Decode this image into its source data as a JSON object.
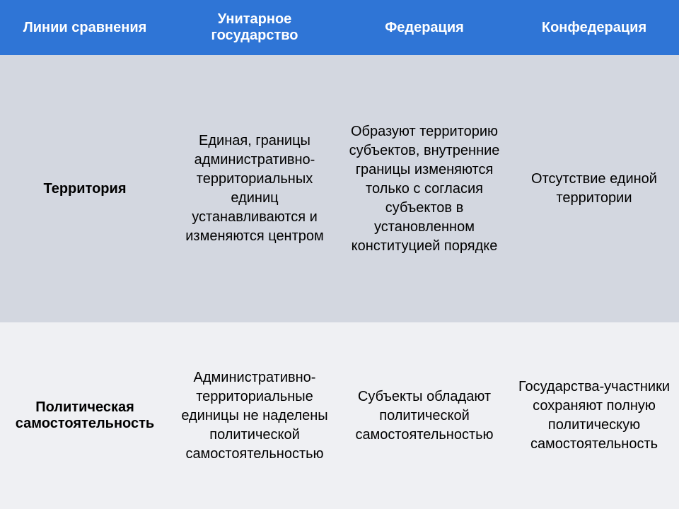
{
  "colors": {
    "header_bg": "#2f75d6",
    "header_text": "#ffffff",
    "row1_bg": "#d3d7e0",
    "row2_bg": "#eff0f3",
    "body_text": "#000000"
  },
  "columns": [
    "Линии сравнения",
    "Унитарное государство",
    "Федерация",
    "Конфедерация"
  ],
  "rows": [
    {
      "label": "Территория",
      "cells": [
        "Единая, границы административно-территориальных единиц устанавливаются и изменяются центром",
        "Образуют территорию субъектов, внутренние границы изменяются только с согласия субъектов в установленном конституцией порядке",
        "Отсутствие единой территории"
      ]
    },
    {
      "label": "Политическая самостоятельность",
      "cells": [
        "Административно-территориальные единицы не наделены политической самостоятельностью",
        "Субъекты обладают политической самостоятельностью",
        "Государства-участники сохраняют полную политическую самостоятельность"
      ]
    }
  ]
}
